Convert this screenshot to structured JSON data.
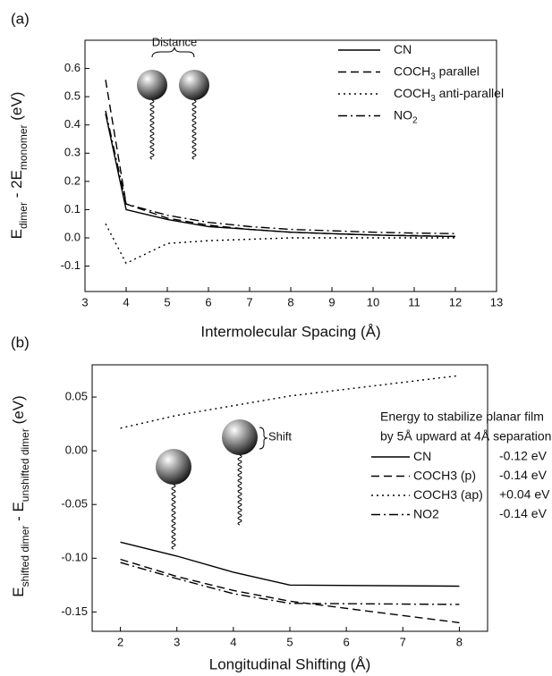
{
  "chart_data": [
    {
      "type": "line",
      "panel_label": "(a)",
      "xlabel": "Intermolecular Spacing (Å)",
      "ylabel": [
        {
          "text": "E"
        },
        {
          "text": "dimer",
          "sub": true
        },
        {
          "text": " - 2E"
        },
        {
          "text": "monomer",
          "sub": true
        },
        {
          "text": " (eV)"
        }
      ],
      "annotations": [
        "Distance"
      ],
      "x": [
        3.5,
        4,
        5,
        6,
        7,
        8,
        9,
        10,
        11,
        12
      ],
      "xlim": [
        3,
        13
      ],
      "xticks": [
        3,
        4,
        5,
        6,
        7,
        8,
        9,
        10,
        11,
        12,
        13
      ],
      "ylim": [
        -0.19,
        0.7
      ],
      "yticks": [
        -0.1,
        {
          "value": 0,
          "label": "0.0"
        },
        0.1,
        0.2,
        0.3,
        0.4,
        0.5,
        0.6
      ],
      "series": [
        {
          "name": [
            {
              "text": "CN"
            }
          ],
          "color": "#000000",
          "dash": "solid",
          "values": [
            0.44,
            0.1,
            0.065,
            0.04,
            0.03,
            0.02,
            0.015,
            0.01,
            0.007,
            0.005
          ]
        },
        {
          "name": [
            {
              "text": "COCH"
            },
            {
              "text": "3",
              "sub": true
            },
            {
              "text": " parallel"
            }
          ],
          "color": "#000000",
          "dash": "dashed",
          "values": [
            0.56,
            0.12,
            0.07,
            0.045,
            0.03,
            0.02,
            0.015,
            0.01,
            0.008,
            0.005
          ]
        },
        {
          "name": [
            {
              "text": "COCH"
            },
            {
              "text": "3",
              "sub": true
            },
            {
              "text": " anti-parallel"
            }
          ],
          "color": "#000000",
          "dash": "dotted",
          "values": [
            0.05,
            -0.09,
            -0.02,
            -0.01,
            -0.005,
            0,
            0,
            0,
            0,
            0
          ]
        },
        {
          "name": [
            {
              "text": "NO"
            },
            {
              "text": "2",
              "sub": true
            }
          ],
          "color": "#000000",
          "dash": "dashdot",
          "values": [
            0.45,
            0.12,
            0.08,
            0.055,
            0.04,
            0.03,
            0.025,
            0.02,
            0.017,
            0.015
          ]
        }
      ]
    },
    {
      "type": "line",
      "panel_label": "(b)",
      "xlabel": "Longitudinal Shifting (Å)",
      "ylabel": [
        {
          "text": "E"
        },
        {
          "text": "shifted dimer",
          "sub": true
        },
        {
          "text": " - E"
        },
        {
          "text": "unshifted dimer",
          "sub": true
        },
        {
          "text": " (eV)"
        }
      ],
      "annotations": [
        "Shift"
      ],
      "legend_title": [
        "Energy to stabilize planar film",
        "by 5Å upward at 4Å separation"
      ],
      "x": [
        2,
        3,
        4,
        5,
        8
      ],
      "xlim": [
        1.5,
        8.5
      ],
      "xticks": [
        2,
        3,
        4,
        5,
        6,
        7,
        8
      ],
      "ylim": [
        -0.168,
        0.08
      ],
      "yticks": [
        -0.15,
        {
          "value": -0.1,
          "label": "-0.10"
        },
        -0.05,
        {
          "value": 0,
          "label": "0.00"
        },
        0.05
      ],
      "series": [
        {
          "name": [
            {
              "text": "CN"
            }
          ],
          "legend_value": "-0.12 eV",
          "color": "#000000",
          "dash": "solid",
          "values": [
            -0.085,
            -0.098,
            -0.113,
            -0.125,
            -0.126
          ]
        },
        {
          "name": [
            {
              "text": "COCH3 (p)"
            }
          ],
          "legend_value": "-0.14 eV",
          "color": "#000000",
          "dash": "dashed",
          "values": [
            -0.101,
            -0.117,
            -0.13,
            -0.14,
            -0.16
          ]
        },
        {
          "name": [
            {
              "text": "COCH3 (ap)"
            }
          ],
          "legend_value": "+0.04 eV",
          "color": "#000000",
          "dash": "dotted",
          "values": [
            0.021,
            0.033,
            0.042,
            0.051,
            0.07
          ]
        },
        {
          "name": [
            {
              "text": "NO2"
            }
          ],
          "legend_value": "-0.14 eV",
          "color": "#000000",
          "dash": "dashdot",
          "values": [
            -0.104,
            -0.119,
            -0.133,
            -0.142,
            -0.143
          ]
        }
      ]
    }
  ]
}
